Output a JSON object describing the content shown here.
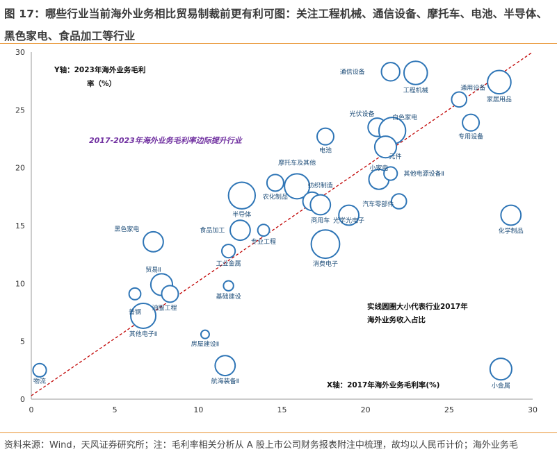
{
  "title": "图 17：哪些行业当前海外业务相比贸易制裁前更有利可图：关注工程机械、通信设备、摩托车、电池、半导体、黑色家电、食品加工等行业",
  "source": "资料来源：Wind，天风证券研究所；注：毛利率相关分析从 A 股上市公司财务报表附注中梳理，故均以人民币计价；海外业务毛",
  "colors": {
    "accent_rule": "#e8922e",
    "bubble": "#2e75b6",
    "diagonal": "#c00000",
    "purple": "#7030a0"
  },
  "chart_data": {
    "type": "scatter",
    "xlim": [
      0,
      30
    ],
    "ylim": [
      0,
      30
    ],
    "xticks": [
      0,
      5,
      10,
      15,
      20,
      25,
      30
    ],
    "yticks": [
      0,
      5,
      10,
      15,
      20,
      25,
      30
    ],
    "xlabel": "X轴：2017年海外业务毛利率(%)",
    "ylabel_line1": "Y轴：2023年海外业务毛利",
    "ylabel_line2": "率（%）",
    "diagonal_label": "2017-2023年海外业务毛利率边际提升行业",
    "size_note_line1": "实线圆圈大小代表行业2017年",
    "size_note_line2": "海外业务收入占比",
    "grid": false,
    "points": [
      {
        "label": "物流",
        "x": 0.5,
        "y": 2.5,
        "size": 8
      },
      {
        "label": "航海装备Ⅱ",
        "x": 11.6,
        "y": 2.9,
        "size": 12
      },
      {
        "label": "房屋建设Ⅱ",
        "x": 10.4,
        "y": 5.6,
        "size": 5
      },
      {
        "label": "其他电子Ⅱ",
        "x": 6.7,
        "y": 7.2,
        "size": 15
      },
      {
        "label": "普钢",
        "x": 6.2,
        "y": 9.1,
        "size": 7
      },
      {
        "label": "贸易Ⅱ",
        "x": 7.8,
        "y": 9.9,
        "size": 13
      },
      {
        "label": "油服工程",
        "x": 8.3,
        "y": 9.1,
        "size": 10
      },
      {
        "label": "基础建设",
        "x": 11.8,
        "y": 9.8,
        "size": 6
      },
      {
        "label": "工业金属",
        "x": 11.8,
        "y": 12.8,
        "size": 8
      },
      {
        "label": "黑色家电",
        "x": 7.3,
        "y": 13.6,
        "size": 12
      },
      {
        "label": "食品加工",
        "x": 12.5,
        "y": 14.6,
        "size": 12
      },
      {
        "label": "专业工程",
        "x": 13.9,
        "y": 14.6,
        "size": 7
      },
      {
        "label": "半导体",
        "x": 12.6,
        "y": 17.6,
        "size": 16
      },
      {
        "label": "农化制品",
        "x": 14.6,
        "y": 18.7,
        "size": 10
      },
      {
        "label": "摩托车及其他",
        "x": 15.9,
        "y": 18.4,
        "size": 15
      },
      {
        "label": "纺织制造",
        "x": 16.8,
        "y": 17.1,
        "size": 11
      },
      {
        "label": "商用车",
        "x": 17.3,
        "y": 16.8,
        "size": 12
      },
      {
        "label": "消费电子",
        "x": 17.6,
        "y": 13.4,
        "size": 17
      },
      {
        "label": "光学光电子",
        "x": 19.0,
        "y": 15.9,
        "size": 12
      },
      {
        "label": "电池",
        "x": 17.6,
        "y": 22.7,
        "size": 10
      },
      {
        "label": "通信设备",
        "x": 21.5,
        "y": 28.3,
        "size": 11
      },
      {
        "label": "工程机械",
        "x": 23.0,
        "y": 28.2,
        "size": 14
      },
      {
        "label": "光伏设备",
        "x": 20.7,
        "y": 23.5,
        "size": 11
      },
      {
        "label": "白色家电",
        "x": 21.6,
        "y": 23.2,
        "size": 16
      },
      {
        "label": "元件",
        "x": 21.2,
        "y": 21.8,
        "size": 13
      },
      {
        "label": "小家电",
        "x": 20.8,
        "y": 19.0,
        "size": 12
      },
      {
        "label": "其他电源设备Ⅱ",
        "x": 21.5,
        "y": 19.5,
        "size": 8
      },
      {
        "label": "汽车零部件",
        "x": 22.0,
        "y": 17.1,
        "size": 9
      },
      {
        "label": "通用设备",
        "x": 25.6,
        "y": 25.9,
        "size": 9
      },
      {
        "label": "家居用品",
        "x": 28.0,
        "y": 27.4,
        "size": 14
      },
      {
        "label": "专用设备",
        "x": 26.3,
        "y": 23.9,
        "size": 10
      },
      {
        "label": "化学制品",
        "x": 28.7,
        "y": 15.9,
        "size": 12
      },
      {
        "label": "小金属",
        "x": 28.1,
        "y": 2.6,
        "size": 13
      }
    ]
  }
}
